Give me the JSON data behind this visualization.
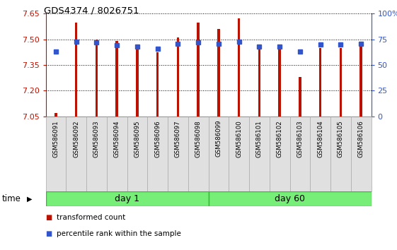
{
  "title": "GDS4374 / 8026751",
  "samples": [
    "GSM586091",
    "GSM586092",
    "GSM586093",
    "GSM586094",
    "GSM586095",
    "GSM586096",
    "GSM586097",
    "GSM586098",
    "GSM586099",
    "GSM586100",
    "GSM586101",
    "GSM586102",
    "GSM586103",
    "GSM586104",
    "GSM586105",
    "GSM586106"
  ],
  "bar_heights": [
    7.07,
    7.6,
    7.5,
    7.49,
    7.46,
    7.425,
    7.51,
    7.6,
    7.56,
    7.625,
    7.44,
    7.44,
    7.28,
    7.45,
    7.45,
    7.47
  ],
  "percentile_values": [
    63,
    73,
    72,
    69,
    68,
    66,
    71,
    72,
    71,
    73,
    68,
    68,
    63,
    70,
    70,
    71
  ],
  "y_min": 7.05,
  "y_max": 7.65,
  "y_ticks": [
    7.05,
    7.2,
    7.35,
    7.5,
    7.65
  ],
  "y_right_ticks": [
    0,
    25,
    50,
    75,
    100
  ],
  "bar_color": "#bb1100",
  "percentile_color": "#3355cc",
  "day1_indices": [
    0,
    7
  ],
  "day60_indices": [
    8,
    15
  ],
  "day1_label": "day 1",
  "day60_label": "day 60",
  "day_color": "#77ee77",
  "day_edge_color": "#33bb33",
  "legend_bar_label": "transformed count",
  "legend_pct_label": "percentile rank within the sample",
  "time_label": "time",
  "bar_width": 0.12,
  "cell_color": "#e0e0e0",
  "cell_edge_color": "#aaaaaa",
  "bg_color": "#ffffff",
  "pct_marker_size": 4
}
